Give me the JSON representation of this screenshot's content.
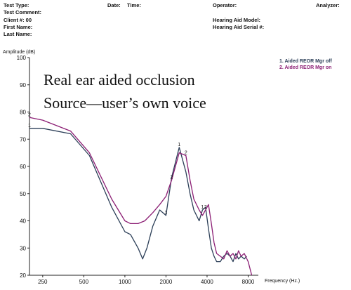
{
  "header": {
    "test_type": "Test Type:",
    "date": "Date:",
    "time": "Time:",
    "operator": "Operator:",
    "analyzer": "Analyzer:",
    "test_comment": "Test Comment:",
    "client": "Client #: 00",
    "first_name": "First Name:",
    "last_name": "Last Name:",
    "hearing_aid_model": "Hearing Aid Model:",
    "hearing_aid_serial": "Hearing Aid Serial #:"
  },
  "chart_data": {
    "type": "line",
    "ylabel": "Amplitude (dB)",
    "xlabel": "Frequency (Hz.)",
    "xscale": "log",
    "xlim": [
      200,
      9500
    ],
    "ylim": [
      20,
      100
    ],
    "xticks": [
      250,
      500,
      1000,
      2000,
      4000,
      8000
    ],
    "xtick_labels": [
      "250",
      "500",
      "1000",
      "2000",
      "4000",
      "8000"
    ],
    "yticks": [
      20,
      30,
      40,
      50,
      60,
      70,
      80,
      90,
      100
    ],
    "ytick_labels": [
      "20",
      "30",
      "40",
      "50",
      "60",
      "70",
      "80",
      "90",
      "100"
    ],
    "annotation": [
      "Real ear aided occlusion",
      "Source—user’s own voice"
    ],
    "legend_position": "top-right",
    "series": [
      {
        "name": "1. Aided REOR Mgr off",
        "marker": "1",
        "color": "#2b3e57",
        "x": [
          200,
          250,
          400,
          550,
          800,
          1000,
          1100,
          1250,
          1350,
          1450,
          1600,
          1800,
          2000,
          2200,
          2500,
          2800,
          3000,
          3200,
          3500,
          3700,
          3900,
          4100,
          4300,
          4500,
          4700,
          5000,
          5300,
          5600,
          5900,
          6200,
          6500,
          6800,
          7100,
          7500,
          7800
        ],
        "y": [
          74,
          74,
          72,
          64,
          45,
          36,
          35,
          30,
          26,
          30,
          38,
          44,
          42,
          56,
          67,
          58,
          50,
          44,
          40,
          44,
          45,
          37,
          30,
          27,
          25,
          25,
          27,
          28,
          27,
          25,
          28,
          26,
          27,
          26,
          27
        ]
      },
      {
        "name": "2. Aided REOR Mgr on",
        "marker": "2",
        "color": "#8b1e74",
        "x": [
          200,
          250,
          400,
          550,
          800,
          1000,
          1100,
          1250,
          1400,
          1600,
          1800,
          2000,
          2200,
          2500,
          2800,
          3000,
          3200,
          3500,
          3700,
          3900,
          4100,
          4300,
          4500,
          4700,
          5000,
          5300,
          5600,
          5900,
          6200,
          6500,
          6800,
          7100,
          7500,
          8000,
          8500
        ],
        "y": [
          78,
          77,
          73,
          65,
          48,
          40,
          39,
          39,
          40,
          43,
          46,
          49,
          55,
          65,
          64,
          55,
          48,
          44,
          42,
          44,
          46,
          39,
          32,
          28,
          27,
          26,
          29,
          27,
          28,
          26,
          29,
          27,
          28,
          25,
          20
        ]
      }
    ]
  }
}
